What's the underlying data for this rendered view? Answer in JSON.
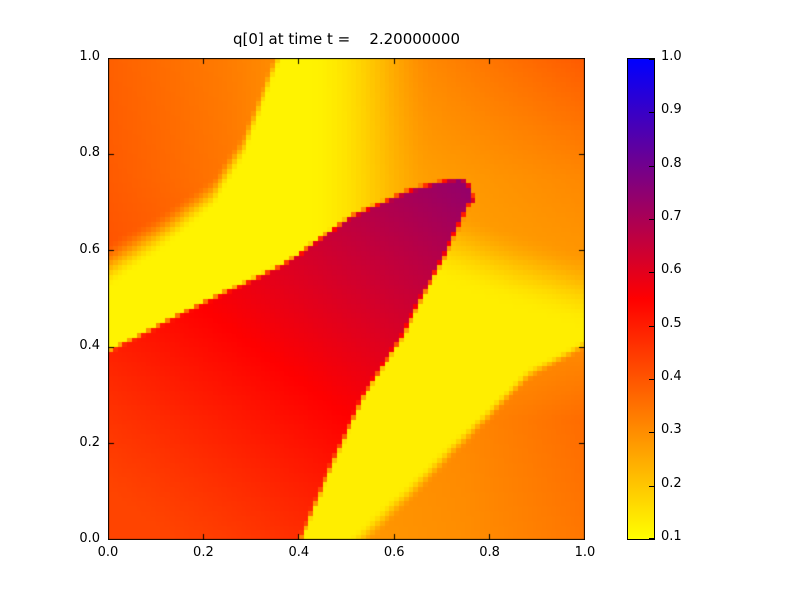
{
  "figure": {
    "background": "#ffffff",
    "title": "q[0] at time t =    2.20000000"
  },
  "chart_data": {
    "type": "heatmap",
    "title": "q[0] at time t =    2.20000000",
    "xlabel": "",
    "ylabel": "",
    "xlim": [
      0.0,
      1.0
    ],
    "ylim": [
      0.0,
      1.0
    ],
    "grid": "off",
    "xticks": {
      "labels": [
        "0.0",
        "0.2",
        "0.4",
        "0.6",
        "0.8",
        "1.0"
      ],
      "values": [
        0.0,
        0.2,
        0.4,
        0.6,
        0.8,
        1.0
      ]
    },
    "yticks": {
      "labels": [
        "0.0",
        "0.2",
        "0.4",
        "0.6",
        "0.8",
        "1.0"
      ],
      "values": [
        0.0,
        0.2,
        0.4,
        0.6,
        0.8,
        1.0
      ]
    },
    "colorbar": {
      "position": "right",
      "vmin": 0.1,
      "vmax": 1.0,
      "tick_labels": [
        "0.1",
        "0.2",
        "0.3",
        "0.4",
        "0.5",
        "0.6",
        "0.7",
        "0.8",
        "0.9",
        "1.0"
      ],
      "tick_values": [
        0.1,
        0.2,
        0.3,
        0.4,
        0.5,
        0.6,
        0.7,
        0.8,
        0.9,
        1.0
      ],
      "colormap_stops": [
        [
          0.1,
          "#ffff00"
        ],
        [
          0.55,
          "#ff0000"
        ],
        [
          1.0,
          "#0000ff"
        ]
      ]
    },
    "field": {
      "description": "q[0] scalar field on unit square; orange background, two yellow advected bands, red sheared wedge with purple rounded tip",
      "resolution": 100,
      "background_grid": {
        "x": [
          0.0,
          0.25,
          0.5,
          0.75,
          1.0
        ],
        "y": [
          0.0,
          0.25,
          0.5,
          0.75,
          1.0
        ],
        "values_rows_y0_to_y1": [
          [
            0.44,
            0.44,
            0.28,
            0.3,
            0.34
          ],
          [
            0.43,
            0.42,
            0.28,
            0.31,
            0.36
          ],
          [
            0.41,
            0.38,
            0.25,
            0.26,
            0.27
          ],
          [
            0.39,
            0.34,
            0.25,
            0.28,
            0.31
          ],
          [
            0.38,
            0.33,
            0.26,
            0.33,
            0.39
          ]
        ]
      },
      "bands": [
        {
          "name": "upper-left-yellow-band",
          "value": 0.12,
          "edges": [
            {
              "type": "above_y",
              "curve": [
                [
                  0.0,
                  0.39
                ],
                [
                  0.19,
                  0.487
                ],
                [
                  0.37,
                  0.572
                ],
                [
                  0.507,
                  0.67
                ],
                [
                  0.63,
                  0.725
                ],
                [
                  0.715,
                  0.748
                ]
              ],
              "width": 0.012
            },
            {
              "type": "below_y",
              "curve": [
                [
                  0.0,
                  0.57
                ],
                [
                  0.12,
                  0.645
                ],
                [
                  0.22,
                  0.72
                ],
                [
                  0.285,
                  0.82
                ],
                [
                  0.355,
                  1.0
                ],
                [
                  0.45,
                  1.4
                ]
              ],
              "width": [
                0.1,
                0.03
              ]
            },
            {
              "type": "left_of_x",
              "x0": 0.55,
              "width": 0.26
            }
          ]
        },
        {
          "name": "lower-right-yellow-band",
          "value": 0.13,
          "edges": [
            {
              "type": "right_of_x",
              "curve": [
                [
                  0.0,
                  0.402
                ],
                [
                  0.15,
                  0.465
                ],
                [
                  0.3,
                  0.535
                ],
                [
                  0.42,
                  0.615
                ],
                [
                  0.5,
                  0.655
                ],
                [
                  0.58,
                  0.7
                ],
                [
                  0.7,
                  0.757
                ]
              ],
              "width": 0.012
            },
            {
              "type": "above_y",
              "curve": [
                [
                  0.48,
                  -0.05
                ],
                [
                  0.56,
                  0.03
                ],
                [
                  0.64,
                  0.105
                ],
                [
                  0.72,
                  0.185
                ],
                [
                  0.8,
                  0.262
                ],
                [
                  0.88,
                  0.342
                ],
                [
                  1.0,
                  0.405
                ]
              ],
              "width": [
                0.06,
                0.02
              ]
            },
            {
              "type": "below_y",
              "curve": [
                [
                  0.58,
                  0.67
                ],
                [
                  0.72,
                  0.61
                ],
                [
                  0.85,
                  0.565
                ],
                [
                  1.0,
                  0.52
                ]
              ],
              "width": 0.16
            }
          ]
        }
      ],
      "wedge": {
        "name": "red-wedge-with-purple-tip",
        "top_curve": [
          [
            0.0,
            0.39
          ],
          [
            0.19,
            0.487
          ],
          [
            0.37,
            0.572
          ],
          [
            0.507,
            0.67
          ],
          [
            0.63,
            0.725
          ],
          [
            0.715,
            0.748
          ]
        ],
        "right_curve": [
          [
            0.0,
            0.402
          ],
          [
            0.15,
            0.465
          ],
          [
            0.3,
            0.535
          ],
          [
            0.42,
            0.615
          ],
          [
            0.5,
            0.655
          ],
          [
            0.58,
            0.7
          ],
          [
            0.7,
            0.757
          ]
        ],
        "tip_cap": {
          "cx": 0.725,
          "cy": 0.7,
          "rx": 0.042,
          "ry": 0.055
        },
        "edge_width": 0.012,
        "value_ramp": {
          "ax": 0.55,
          "ay": 0.75,
          "p0": 0.08,
          "p1": 0.97,
          "v0": 0.43,
          "v1": 0.74,
          "gamma": 1.15
        }
      }
    }
  }
}
